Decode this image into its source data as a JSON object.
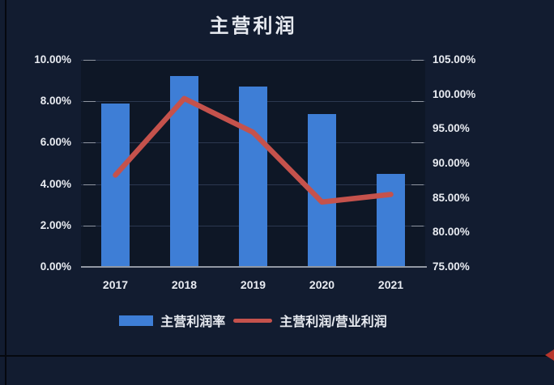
{
  "window": {
    "background": "#121c30",
    "plot_background": "#0e1726",
    "cell_border_color": "#05080f",
    "edge_marker_color": "#b8352b"
  },
  "chart_data": {
    "type": "bar",
    "combo": "bar+line",
    "title": "主营利润",
    "categories": [
      "2017",
      "2018",
      "2019",
      "2020",
      "2021"
    ],
    "series": [
      {
        "name": "主营利润率",
        "type": "bar",
        "axis": "left",
        "values": [
          7.9,
          9.2,
          8.7,
          7.4,
          4.5
        ],
        "color": "#3e7ed6"
      },
      {
        "name": "主营利润/营业利润",
        "type": "line",
        "axis": "right",
        "values": [
          88.3,
          99.4,
          94.5,
          84.4,
          85.5
        ],
        "color": "#c5524c"
      }
    ],
    "left_axis": {
      "min": 0,
      "max": 10,
      "tick_labels": [
        "0.00%",
        "2.00%",
        "4.00%",
        "6.00%",
        "8.00%",
        "10.00%"
      ]
    },
    "right_axis": {
      "min": 75,
      "max": 105,
      "tick_labels": [
        "75.00%",
        "80.00%",
        "85.00%",
        "90.00%",
        "95.00%",
        "100.00%",
        "105.00%"
      ]
    },
    "legend_position": "bottom",
    "grid": true,
    "text_color": "#e8ebf1",
    "grid_color": "#2c3850",
    "axis_line_color": "#9298a3",
    "tick_color": "#8f95a1"
  }
}
